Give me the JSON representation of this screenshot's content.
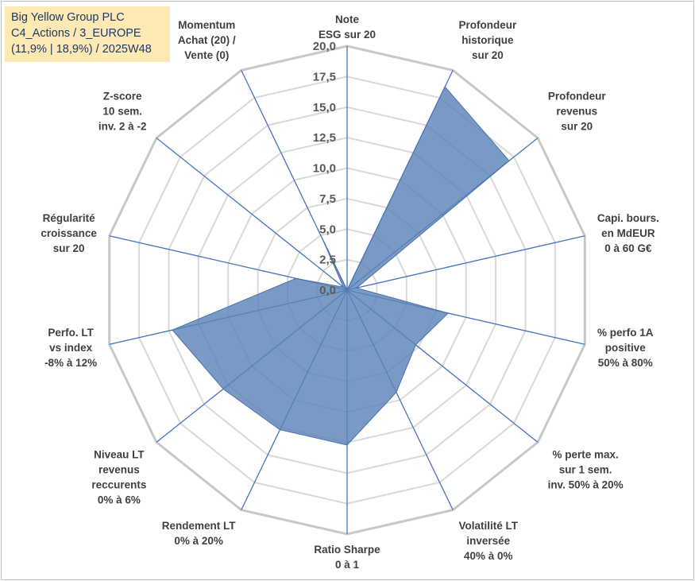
{
  "title": {
    "line1": "Big Yellow Group PLC",
    "line2": "C4_Actions / 3_EUROPE",
    "line3": "(11,9% | 18,9%) / 2025W48",
    "background_color": "#fde9b3"
  },
  "chart_data": {
    "type": "radar",
    "rmin": 0,
    "rmax": 20,
    "ticks": [
      "0,0",
      "2,5",
      "5,0",
      "7,5",
      "10,0",
      "12,5",
      "15,0",
      "17,5",
      "20,0"
    ],
    "fill_color": "#5b84b7",
    "axis_line_color": "#4472c4",
    "grid_color": "#d9d9d9",
    "axes": [
      {
        "label": [
          "Note",
          "ESG sur 20"
        ],
        "value": 0.0
      },
      {
        "label": [
          "Profondeur",
          "historique",
          "sur 20"
        ],
        "value": 18.5
      },
      {
        "label": [
          "Profondeur",
          "revenus",
          "sur 20"
        ],
        "value": 17.0
      },
      {
        "label": [
          "Capi. bours.",
          "en MdEUR",
          "0 à 60 G€"
        ],
        "value": 0.8
      },
      {
        "label": [
          "% perfo 1A",
          "positive",
          "50% à 80%"
        ],
        "value": 8.5
      },
      {
        "label": [
          "% perte max.",
          "sur 1 sem.",
          "inv. 50% à 20%"
        ],
        "value": 7.2
      },
      {
        "label": [
          "Volatilité LT",
          "inversée",
          "40% à 0%"
        ],
        "value": 9.3
      },
      {
        "label": [
          "Ratio Sharpe",
          "0 à 1"
        ],
        "value": 12.7
      },
      {
        "label": [
          "Rendement LT",
          "0% à 20%"
        ],
        "value": 12.7
      },
      {
        "label": [
          "Niveau LT",
          "revenus",
          "reccurents",
          "0% à 6%"
        ],
        "value": 13.0
      },
      {
        "label": [
          "Perfo. LT",
          "vs index",
          "-8% à 12%"
        ],
        "value": 14.7
      },
      {
        "label": [
          "Régularité",
          "croissance",
          "sur 20"
        ],
        "value": 4.3
      },
      {
        "label": [
          "Z-score",
          "10 sem.",
          "inv. 2 à -2"
        ],
        "value": 0.4
      },
      {
        "label": [
          "Momentum",
          "Achat (20) /",
          "Vente (0)"
        ],
        "value": 4.7
      }
    ]
  }
}
